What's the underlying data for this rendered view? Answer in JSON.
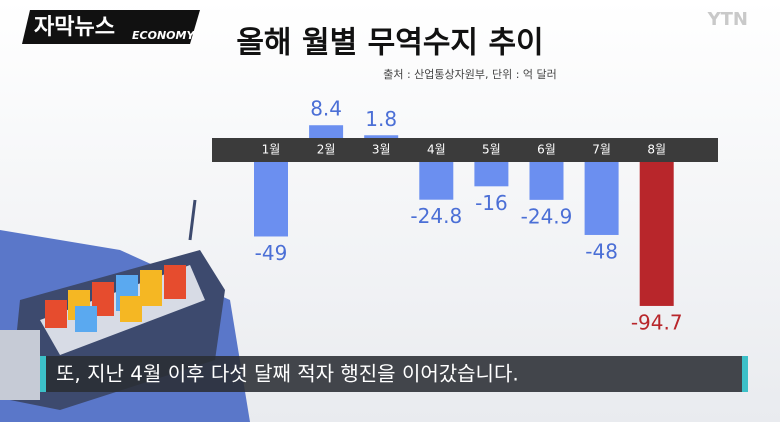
{
  "logo": {
    "title": "자막뉴스",
    "tag": "ECONOMY"
  },
  "channel": "YTN",
  "caption": "또, 지난 4월 이후 다섯 달째 적자 행진을 이어갔습니다.",
  "chart_data": {
    "type": "bar",
    "title": "올해 월별 무역수지 추이",
    "subtitle": "출처 : 산업통상자원부, 단위 : 억 달러",
    "categories": [
      "1월",
      "2월",
      "3월",
      "4월",
      "5월",
      "6월",
      "7월",
      "8월"
    ],
    "values": [
      -49,
      8.4,
      1.8,
      -24.8,
      -16,
      -24.9,
      -48,
      -94.7
    ],
    "colors": [
      "#6b8ff0",
      "#6b8ff0",
      "#6b8ff0",
      "#6b8ff0",
      "#6b8ff0",
      "#6b8ff0",
      "#6b8ff0",
      "#b8262b"
    ]
  }
}
